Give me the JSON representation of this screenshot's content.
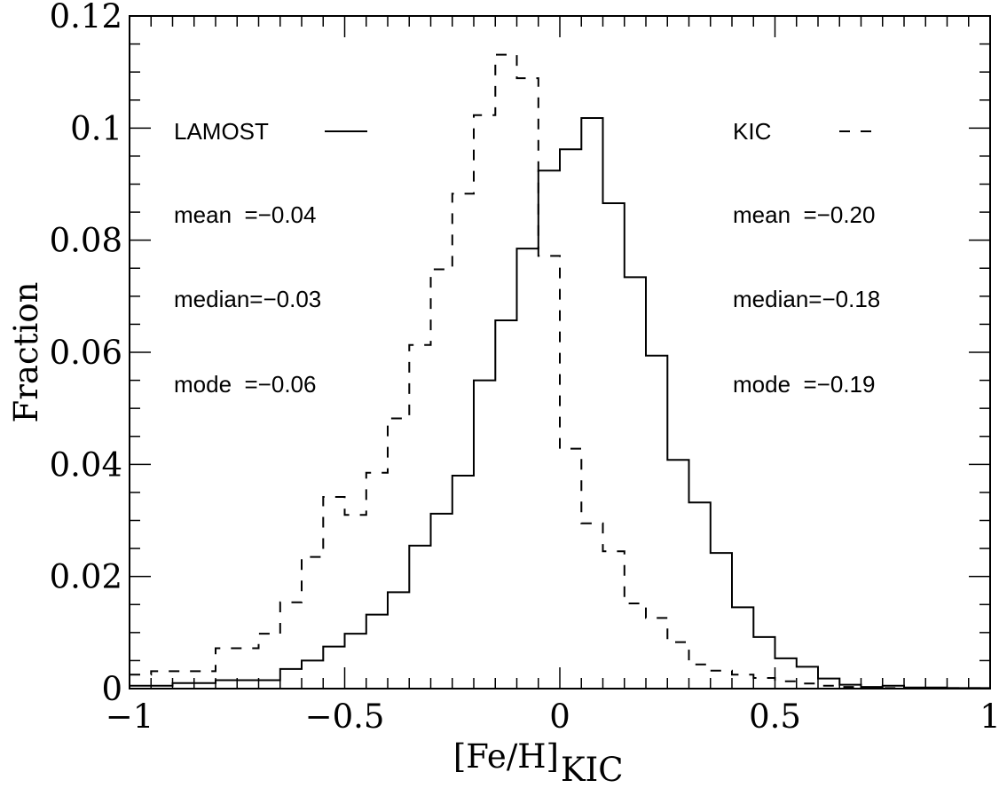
{
  "chart_data": {
    "type": "line",
    "xlabel": "[Fe/H]",
    "xlabel_sub": "KIC",
    "ylabel": "Fraction",
    "xlim": [
      -1,
      1
    ],
    "ylim": [
      0,
      0.12
    ],
    "x_ticks": [
      -1,
      -0.5,
      0,
      0.5,
      1
    ],
    "x_tick_labels": [
      "−1",
      "−0.5",
      "0",
      "0.5",
      "1"
    ],
    "y_ticks": [
      0,
      0.02,
      0.04,
      0.06,
      0.08,
      0.1,
      0.12
    ],
    "y_tick_labels": [
      "0",
      "0.02",
      "0.04",
      "0.06",
      "0.08",
      "0.1",
      "0.12"
    ],
    "bin_edges": [
      -1.0,
      -0.95,
      -0.9,
      -0.85,
      -0.8,
      -0.75,
      -0.7,
      -0.65,
      -0.6,
      -0.55,
      -0.5,
      -0.45,
      -0.4,
      -0.35,
      -0.3,
      -0.25,
      -0.2,
      -0.15,
      -0.1,
      -0.05,
      0.0,
      0.05,
      0.1,
      0.15,
      0.2,
      0.25,
      0.3,
      0.35,
      0.4,
      0.45,
      0.5,
      0.55,
      0.6,
      0.65,
      0.7,
      0.75,
      0.8,
      0.85,
      0.9,
      0.95,
      1.0
    ],
    "series": [
      {
        "name": "LAMOST",
        "line_style": "solid",
        "values": [
          0.0005,
          0.0005,
          0.001,
          0.001,
          0.0015,
          0.0015,
          0.0015,
          0.0035,
          0.005,
          0.0075,
          0.0098,
          0.0132,
          0.0172,
          0.0255,
          0.0312,
          0.038,
          0.055,
          0.0657,
          0.0785,
          0.0924,
          0.0962,
          0.1018,
          0.0866,
          0.0734,
          0.0594,
          0.0408,
          0.0332,
          0.0242,
          0.0145,
          0.0092,
          0.0054,
          0.0039,
          0.0018,
          0.0007,
          0.0003,
          0.0005,
          0.0002,
          0.0002,
          0.0001,
          0.0001
        ]
      },
      {
        "name": "KIC",
        "line_style": "dashed",
        "values": [
          0.0025,
          0.0031,
          0.0031,
          0.0031,
          0.0072,
          0.0072,
          0.0098,
          0.0154,
          0.0235,
          0.0342,
          0.031,
          0.0385,
          0.0482,
          0.0613,
          0.0748,
          0.0883,
          0.1023,
          0.1131,
          0.1089,
          0.0772,
          0.0428,
          0.0295,
          0.0245,
          0.0152,
          0.0126,
          0.0083,
          0.0043,
          0.0032,
          0.0025,
          0.0019,
          0.0013,
          0.0009,
          0.0005,
          0.0003,
          0.0002,
          0.0001,
          0.0001,
          0.0001,
          0.0001,
          0.0001
        ]
      }
    ]
  },
  "legend": {
    "lamost_label": "LAMOST",
    "kic_label": "KIC",
    "lamost_stats": {
      "mean": "mean  =−0.04",
      "median": "median=−0.03",
      "mode": "mode  =−0.06"
    },
    "kic_stats": {
      "mean": "mean  =−0.20",
      "median": "median=−0.18",
      "mode": "mode  =−0.19"
    }
  }
}
